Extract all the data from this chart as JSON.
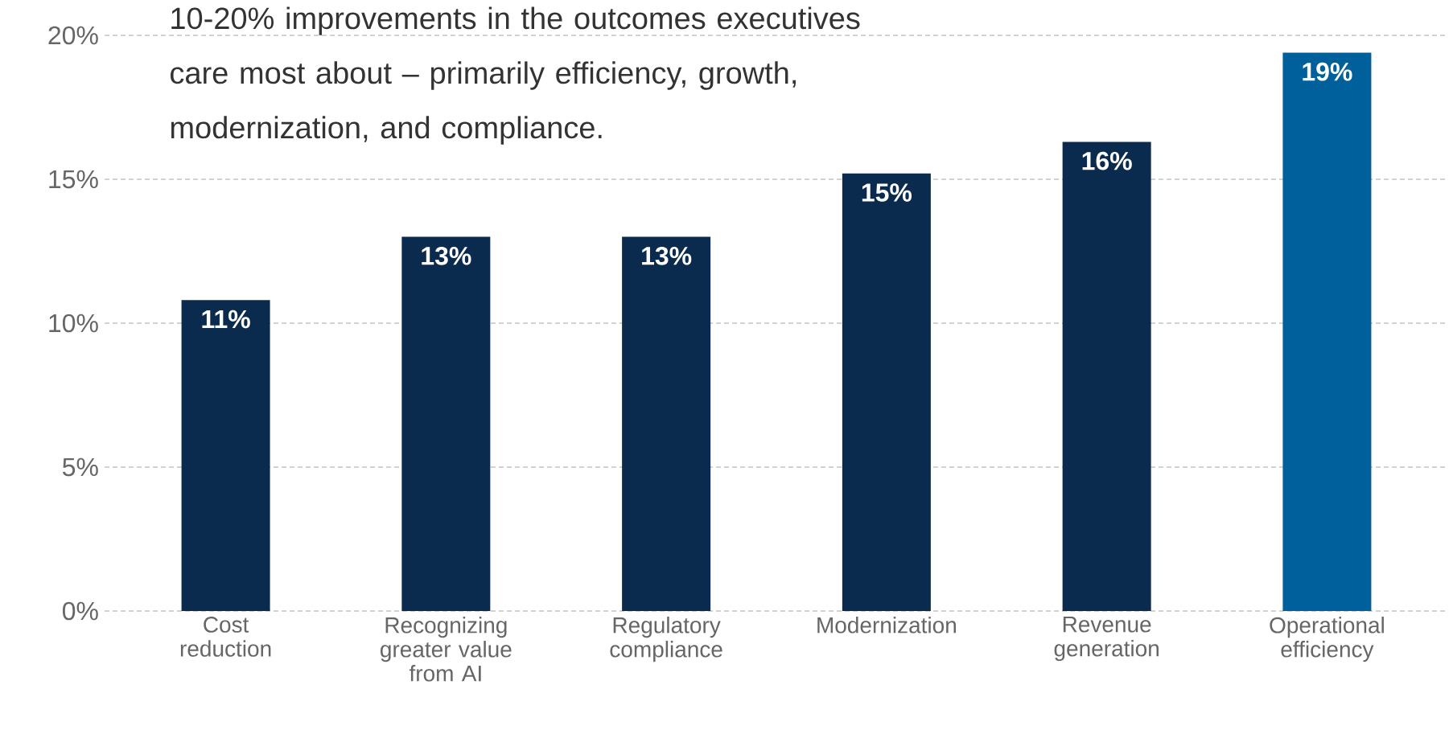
{
  "chart_data": {
    "type": "bar",
    "categories": [
      "Cost reduction",
      "Recognizing greater value from AI",
      "Regulatory compliance",
      "Modernization",
      "Revenue generation",
      "Operational efficiency"
    ],
    "values": [
      10.8,
      13,
      13,
      15.2,
      16.3,
      19.4
    ],
    "value_labels": [
      "11%",
      "13%",
      "13%",
      "15%",
      "16%",
      "19%"
    ],
    "colors": [
      "#0a2a4e",
      "#0a2a4e",
      "#0a2a4e",
      "#0a2a4e",
      "#0a2a4e",
      "#00609c"
    ],
    "ylim": [
      0,
      20
    ],
    "yticks": [
      {
        "value": 0,
        "label": "0%"
      },
      {
        "value": 5,
        "label": "5%"
      },
      {
        "value": 10,
        "label": "10%"
      },
      {
        "value": 15,
        "label": "15%"
      },
      {
        "value": 20,
        "label": "20%"
      }
    ],
    "grid": "y",
    "annotations": [
      "10-20% improvements in the outcomes executives care most about – primarily efficiency, growth, modernization, and compliance."
    ]
  }
}
